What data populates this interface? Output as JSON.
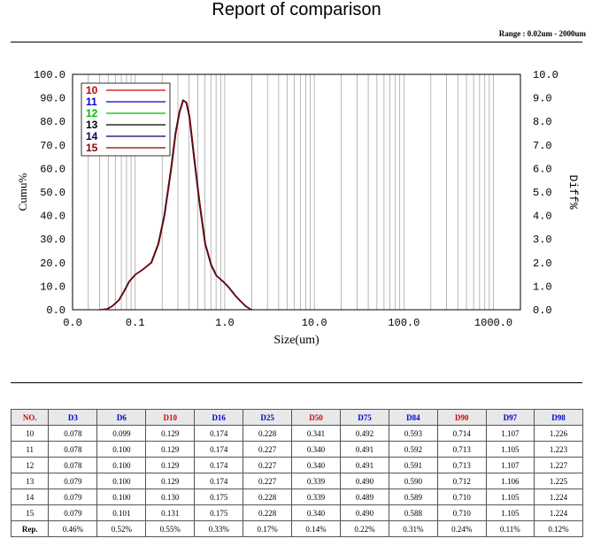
{
  "report": {
    "title": "Report of comparison",
    "range_note": "Range : 0.02um - 2000um"
  },
  "colors": {
    "red_header": "#e00000",
    "blue_header": "#0000cc"
  },
  "chart_data": {
    "type": "line",
    "xlabel": "Size(um)",
    "ylabel_left": "Cumu%",
    "ylabel_right": "Diff%",
    "x_scale": "log",
    "xlim": [
      0.02,
      2000
    ],
    "ylim_left": [
      0,
      100
    ],
    "ylim_right": [
      0,
      10
    ],
    "x_ticks": [
      "0.0",
      "0.1",
      "1.0",
      "10.0",
      "100.0",
      "1000.0"
    ],
    "y_ticks_left": [
      "0.0",
      "10.0",
      "20.0",
      "30.0",
      "40.0",
      "50.0",
      "60.0",
      "70.0",
      "80.0",
      "90.0",
      "100.0"
    ],
    "y_ticks_right": [
      "0.0",
      "1.0",
      "2.0",
      "3.0",
      "4.0",
      "5.0",
      "6.0",
      "7.0",
      "8.0",
      "9.0",
      "10.0"
    ],
    "grid": "vertical log grid",
    "legend_position": "top-left",
    "series": [
      {
        "name": "10",
        "color": "#cc0000"
      },
      {
        "name": "11",
        "color": "#0000cc"
      },
      {
        "name": "12",
        "color": "#00bb00"
      },
      {
        "name": "13",
        "color": "#000000"
      },
      {
        "name": "14",
        "color": "#000066"
      },
      {
        "name": "15",
        "color": "#880000"
      }
    ],
    "curve": {
      "x": [
        0.04,
        0.048,
        0.055,
        0.065,
        0.075,
        0.085,
        0.1,
        0.12,
        0.15,
        0.18,
        0.21,
        0.25,
        0.28,
        0.31,
        0.34,
        0.37,
        0.4,
        0.45,
        0.52,
        0.6,
        0.7,
        0.8,
        0.95,
        1.1,
        1.3,
        1.5,
        1.7,
        1.9,
        2.0
      ],
      "y": [
        0.0,
        0.3,
        1.5,
        4.0,
        8.0,
        12.0,
        15.0,
        17.0,
        20.0,
        28.0,
        40.0,
        60.0,
        75.0,
        84.0,
        89.0,
        88.0,
        82.0,
        65.0,
        45.0,
        28.0,
        19.0,
        14.5,
        12.0,
        9.5,
        6.0,
        3.5,
        1.5,
        0.3,
        0.0
      ]
    }
  },
  "table": {
    "headers": [
      {
        "label": "NO.",
        "color": "#e00000"
      },
      {
        "label": "D3",
        "color": "#0000cc"
      },
      {
        "label": "D6",
        "color": "#0000cc"
      },
      {
        "label": "D10",
        "color": "#e00000"
      },
      {
        "label": "D16",
        "color": "#0000cc"
      },
      {
        "label": "D25",
        "color": "#0000cc"
      },
      {
        "label": "D50",
        "color": "#e00000"
      },
      {
        "label": "D75",
        "color": "#0000cc"
      },
      {
        "label": "D84",
        "color": "#0000cc"
      },
      {
        "label": "D90",
        "color": "#e00000"
      },
      {
        "label": "D97",
        "color": "#0000cc"
      },
      {
        "label": "D98",
        "color": "#0000cc"
      }
    ],
    "rows": [
      [
        "10",
        "0.078",
        "0.099",
        "0.129",
        "0.174",
        "0.228",
        "0.341",
        "0.492",
        "0.593",
        "0.714",
        "1.107",
        "1.226"
      ],
      [
        "11",
        "0.078",
        "0.100",
        "0.129",
        "0.174",
        "0.227",
        "0.340",
        "0.491",
        "0.592",
        "0.713",
        "1.105",
        "1.223"
      ],
      [
        "12",
        "0.078",
        "0.100",
        "0.129",
        "0.174",
        "0.227",
        "0.340",
        "0.491",
        "0.591",
        "0.713",
        "1.107",
        "1.227"
      ],
      [
        "13",
        "0.079",
        "0.100",
        "0.129",
        "0.174",
        "0.227",
        "0.339",
        "0.490",
        "0.590",
        "0.712",
        "1.106",
        "1.225"
      ],
      [
        "14",
        "0.079",
        "0.100",
        "0.130",
        "0.175",
        "0.228",
        "0.339",
        "0.489",
        "0.589",
        "0.710",
        "1.105",
        "1.224"
      ],
      [
        "15",
        "0.079",
        "0.101",
        "0.131",
        "0.175",
        "0.228",
        "0.340",
        "0.490",
        "0.588",
        "0.710",
        "1.105",
        "1.224"
      ],
      [
        "Rep.",
        "0.46%",
        "0.52%",
        "0.55%",
        "0.33%",
        "0.17%",
        "0.14%",
        "0.22%",
        "0.31%",
        "0.24%",
        "0.11%",
        "0.12%"
      ]
    ]
  }
}
